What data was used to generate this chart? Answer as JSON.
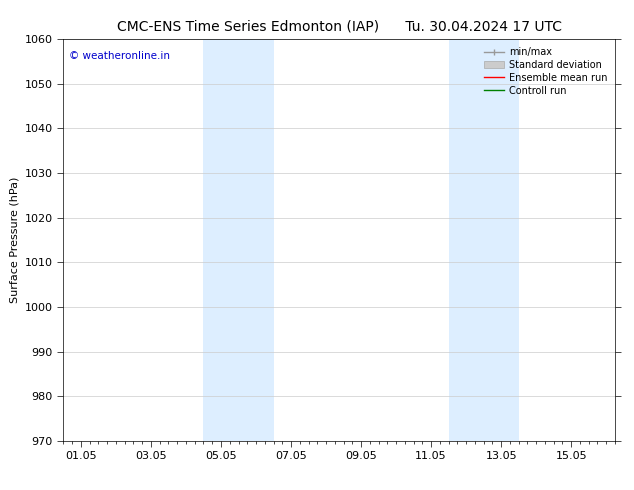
{
  "title_left": "CMC-ENS Time Series Edmonton (IAP)",
  "title_right": "Tu. 30.04.2024 17 UTC",
  "ylabel": "Surface Pressure (hPa)",
  "ylim": [
    970,
    1060
  ],
  "yticks": [
    970,
    980,
    990,
    1000,
    1010,
    1020,
    1030,
    1040,
    1050,
    1060
  ],
  "xtick_labels": [
    "01.05",
    "03.05",
    "05.05",
    "07.05",
    "09.05",
    "11.05",
    "13.05",
    "15.05"
  ],
  "xtick_positions": [
    0,
    2,
    4,
    6,
    8,
    10,
    12,
    14
  ],
  "xlim": [
    -0.5,
    15.0
  ],
  "shaded_bands": [
    {
      "x_start": 3.5,
      "x_end": 4.5,
      "color": "#ddeeff"
    },
    {
      "x_start": 4.5,
      "x_end": 5.5,
      "color": "#ddeeff"
    },
    {
      "x_start": 10.5,
      "x_end": 11.5,
      "color": "#ddeeff"
    },
    {
      "x_start": 11.5,
      "x_end": 12.5,
      "color": "#ddeeff"
    }
  ],
  "watermark_text": "© weatheronline.in",
  "watermark_color": "#0000cc",
  "legend_items": [
    {
      "label": "min/max",
      "color": "#999999",
      "lw": 1.0
    },
    {
      "label": "Standard deviation",
      "color": "#cccccc",
      "lw": 6
    },
    {
      "label": "Ensemble mean run",
      "color": "#ff0000",
      "lw": 1.0
    },
    {
      "label": "Controll run",
      "color": "#008000",
      "lw": 1.0
    }
  ],
  "bg_color": "#ffffff",
  "grid_color": "#cccccc",
  "tick_label_fontsize": 8,
  "title_fontsize": 10,
  "ylabel_fontsize": 8
}
